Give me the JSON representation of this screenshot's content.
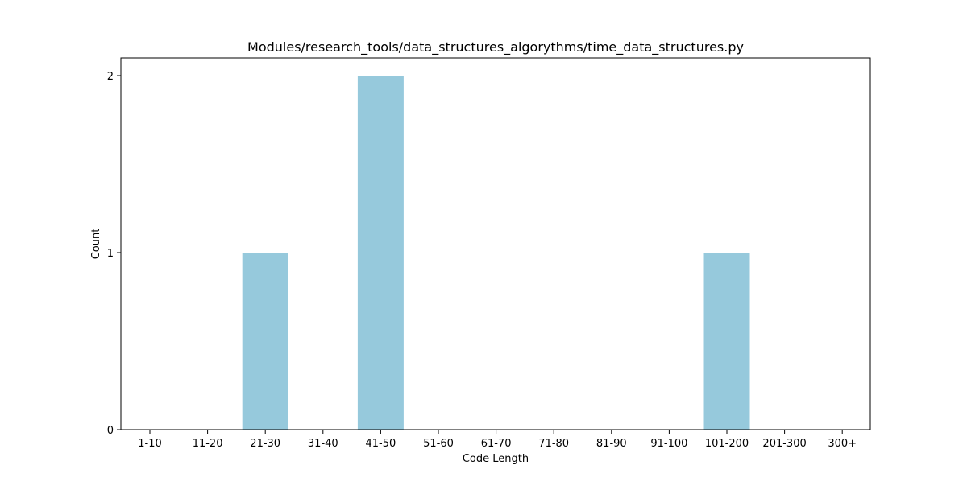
{
  "chart_data": {
    "type": "bar",
    "title": "Modules/research_tools/data_structures_algorythms/time_data_structures.py",
    "xlabel": "Code Length",
    "ylabel": "Count",
    "categories": [
      "1-10",
      "11-20",
      "21-30",
      "31-40",
      "41-50",
      "51-60",
      "61-70",
      "71-80",
      "81-90",
      "91-100",
      "101-200",
      "201-300",
      "300+"
    ],
    "values": [
      0,
      0,
      1,
      0,
      2,
      0,
      0,
      0,
      0,
      0,
      1,
      0,
      0
    ],
    "ylim": [
      0,
      2.1
    ],
    "yticks": [
      0,
      1,
      2
    ],
    "grid": false,
    "bar_color": "#96c9dc"
  }
}
